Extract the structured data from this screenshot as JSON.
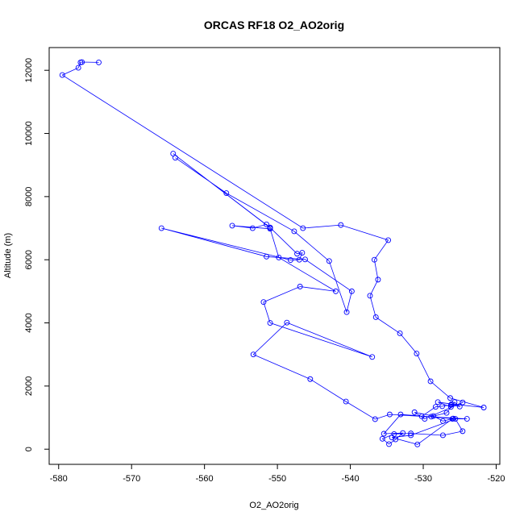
{
  "chart_data": {
    "type": "line",
    "title": "ORCAS RF18 O2_AO2orig",
    "xlabel": "O2_AO2orig",
    "ylabel": "Altitude (m)",
    "xlim": [
      -581.3,
      -519.5
    ],
    "ylim": [
      -480,
      12720
    ],
    "x_ticks": [
      -580,
      -570,
      -560,
      -550,
      -540,
      -530,
      -520
    ],
    "y_ticks": [
      0,
      2000,
      4000,
      6000,
      8000,
      10000,
      12000
    ],
    "grid": false,
    "line_color": "#0000ff",
    "marker": "open-circle",
    "series": [
      {
        "x": [
          -574.5,
          -576.8,
          -577.0,
          -577.3,
          -579.5,
          -546.5,
          -541.3,
          -534.8,
          -536.7,
          -536.2,
          -537.3,
          -536.5,
          -533.2,
          -530.9,
          -529.0,
          -526.3,
          -521.7,
          -526.1,
          -528.0,
          -526.2,
          -524.6,
          -529.8,
          -531.2,
          -528.6,
          -527.3,
          -525.9,
          -533.1,
          -535.4,
          -532.8,
          -533.8,
          -534.7,
          -535.6,
          -534.0,
          -531.7,
          -527.3,
          -524.6,
          -525.6,
          -531.7,
          -534.3,
          -530.8,
          -526.0,
          -524.0,
          -528.9,
          -526.8,
          -525.7,
          -525.0,
          -526.2,
          -527.4,
          -528.3,
          -530.2,
          -534.6,
          -536.6,
          -540.6,
          -545.5,
          -553.3,
          -548.7,
          -537.0,
          -551.0,
          -551.9,
          -546.9,
          -542.0,
          -549.8,
          -551.0,
          -556.2,
          -553.4,
          -551.5,
          -551.0,
          -564.3,
          -551.0,
          -547.3,
          -546.6,
          -547.0,
          -548.2,
          -565.9,
          -551.5,
          -546.2,
          -539.8,
          -540.5,
          -542.9,
          -547.7,
          -557.0,
          -564.0
        ],
        "y": [
          12250,
          12260,
          12250,
          12080,
          11850,
          7000,
          7100,
          6620,
          6000,
          5370,
          4860,
          4180,
          3670,
          3030,
          2150,
          1620,
          1320,
          1430,
          1490,
          1340,
          1480,
          960,
          1170,
          1050,
          890,
          970,
          1100,
          490,
          510,
          310,
          160,
          330,
          480,
          500,
          440,
          570,
          960,
          440,
          370,
          150,
          960,
          960,
          1030,
          1150,
          1490,
          1350,
          1400,
          1360,
          1340,
          1040,
          1100,
          950,
          1510,
          2220,
          3000,
          4010,
          2920,
          4000,
          4660,
          5150,
          5000,
          6070,
          6980,
          7080,
          7000,
          7120,
          7010,
          9360,
          7020,
          6190,
          6220,
          6000,
          5990,
          7000,
          6100,
          6010,
          5000,
          4340,
          5960,
          6900,
          8110,
          9230
        ]
      }
    ]
  }
}
